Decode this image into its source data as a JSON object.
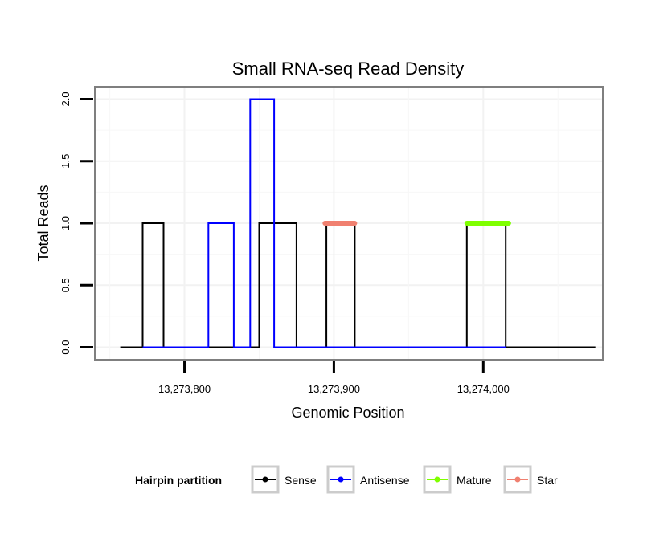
{
  "chart_data": {
    "type": "line",
    "title": "Small RNA-seq Read Density",
    "xlabel": "Genomic Position",
    "ylabel": "Total Reads",
    "xlim": [
      13273740,
      13274080
    ],
    "ylim": [
      -0.1,
      2.1
    ],
    "x_ticks": [
      {
        "value": 13273800,
        "label": "13,273,800"
      },
      {
        "value": 13273900,
        "label": "13,273,900"
      },
      {
        "value": 13274000,
        "label": "13,274,000"
      }
    ],
    "y_ticks": [
      {
        "value": 0,
        "label": "0.0"
      },
      {
        "value": 0.5,
        "label": "0.5"
      },
      {
        "value": 1,
        "label": "1.0"
      },
      {
        "value": 1.5,
        "label": "1.5"
      },
      {
        "value": 2,
        "label": "2.0"
      }
    ],
    "grid": true,
    "series": [
      {
        "name": "Sense",
        "color": "#000000",
        "points": [
          [
            13273757,
            0
          ],
          [
            13273772,
            0
          ],
          [
            13273772,
            1
          ],
          [
            13273786,
            1
          ],
          [
            13273786,
            0
          ],
          [
            13273850,
            0
          ],
          [
            13273850,
            1
          ],
          [
            13273875,
            1
          ],
          [
            13273875,
            0
          ],
          [
            13273895,
            0
          ],
          [
            13273895,
            1
          ],
          [
            13273914,
            1
          ],
          [
            13273914,
            0
          ],
          [
            13273989,
            0
          ],
          [
            13273989,
            1
          ],
          [
            13274015,
            1
          ],
          [
            13274015,
            0
          ],
          [
            13274075,
            0
          ]
        ]
      },
      {
        "name": "Antisense",
        "color": "#0000ff",
        "points": [
          [
            13273772,
            0
          ],
          [
            13273816,
            0
          ],
          [
            13273816,
            1
          ],
          [
            13273833,
            1
          ],
          [
            13273833,
            0
          ],
          [
            13273844,
            0
          ],
          [
            13273844,
            2
          ],
          [
            13273860,
            2
          ],
          [
            13273860,
            0
          ],
          [
            13274015,
            0
          ]
        ]
      },
      {
        "name": "Mature",
        "color": "#7fff00",
        "points": [
          [
            13273989,
            1
          ],
          [
            13274017,
            1
          ]
        ]
      },
      {
        "name": "Star",
        "color": "#f08070",
        "points": [
          [
            13273894,
            1
          ],
          [
            13273914,
            1
          ]
        ]
      }
    ],
    "legend": {
      "title": "Hairpin partition",
      "position": "bottom",
      "entries": [
        "Sense",
        "Antisense",
        "Mature",
        "Star"
      ]
    }
  }
}
